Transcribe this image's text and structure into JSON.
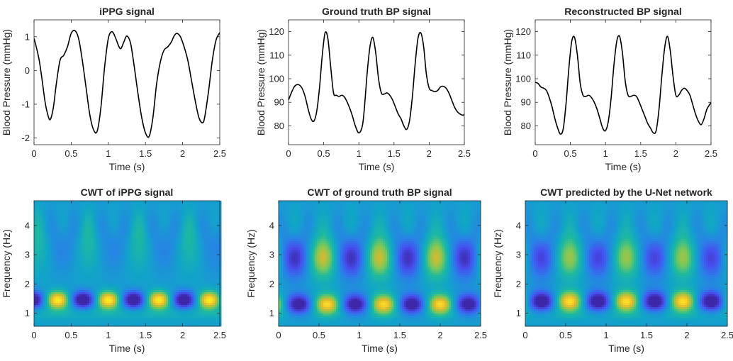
{
  "chart_data": [
    {
      "type": "line",
      "title": "iPPG signal",
      "xlabel": "Time (s)",
      "ylabel": "Blood Pressure (mmHg)",
      "xlim": [
        0,
        2.5
      ],
      "ylim": [
        -2.2,
        1.5
      ],
      "xticks": [
        0,
        0.5,
        1,
        1.5,
        2,
        2.5
      ],
      "xtick_labels": [
        "0",
        "0.5",
        "1",
        "1.5",
        "2",
        "2.5"
      ],
      "yticks": [
        -2,
        -1,
        0,
        1
      ],
      "ytick_labels": [
        "-2",
        "-1",
        "0",
        "1"
      ],
      "grid": false,
      "series": [
        {
          "color": "#000000",
          "x": [
            0,
            0.03,
            0.07,
            0.11,
            0.15,
            0.19,
            0.22,
            0.26,
            0.3,
            0.35,
            0.4,
            0.45,
            0.5,
            0.55,
            0.6,
            0.65,
            0.7,
            0.75,
            0.8,
            0.85,
            0.9,
            0.95,
            1.0,
            1.05,
            1.1,
            1.14,
            1.17,
            1.21,
            1.25,
            1.3,
            1.35,
            1.4,
            1.45,
            1.5,
            1.55,
            1.6,
            1.65,
            1.7,
            1.75,
            1.8,
            1.85,
            1.88,
            1.92,
            1.97,
            2.02,
            2.07,
            2.12,
            2.17,
            2.22,
            2.27,
            2.3,
            2.35,
            2.4,
            2.45,
            2.5
          ],
          "y": [
            0.95,
            0.7,
            0.3,
            -0.3,
            -0.95,
            -1.35,
            -1.45,
            -1.1,
            -0.4,
            0.3,
            0.45,
            0.7,
            1.1,
            1.18,
            0.95,
            0.3,
            -0.5,
            -1.3,
            -1.75,
            -1.8,
            -1.1,
            0.1,
            0.95,
            1.15,
            0.95,
            0.72,
            0.65,
            0.85,
            1.02,
            0.8,
            0.1,
            -0.7,
            -1.4,
            -1.85,
            -1.95,
            -1.4,
            -0.4,
            0.25,
            0.6,
            0.7,
            0.85,
            1.0,
            1.1,
            1.0,
            0.7,
            0.3,
            -0.3,
            -0.9,
            -1.4,
            -1.55,
            -1.35,
            -0.6,
            0.3,
            0.9,
            1.12
          ]
        }
      ]
    },
    {
      "type": "line",
      "title": "Ground truth BP signal",
      "xlabel": "Time (s)",
      "ylabel": "Blood Pressure (mmHg)",
      "xlim": [
        0,
        2.5
      ],
      "ylim": [
        72,
        125
      ],
      "xticks": [
        0,
        0.5,
        1,
        1.5,
        2,
        2.5
      ],
      "xtick_labels": [
        "0",
        "0.5",
        "1",
        "1.5",
        "2",
        "2.5"
      ],
      "yticks": [
        80,
        90,
        100,
        110,
        120
      ],
      "ytick_labels": [
        "80",
        "90",
        "100",
        "110",
        "120"
      ],
      "grid": false,
      "series": [
        {
          "color": "#000000",
          "x": [
            0,
            0.04,
            0.08,
            0.12,
            0.16,
            0.2,
            0.24,
            0.28,
            0.32,
            0.36,
            0.4,
            0.44,
            0.48,
            0.52,
            0.56,
            0.6,
            0.64,
            0.68,
            0.72,
            0.76,
            0.8,
            0.85,
            0.9,
            0.95,
            1.0,
            1.05,
            1.08,
            1.12,
            1.16,
            1.2,
            1.24,
            1.28,
            1.32,
            1.36,
            1.4,
            1.44,
            1.48,
            1.52,
            1.56,
            1.6,
            1.64,
            1.68,
            1.72,
            1.76,
            1.8,
            1.84,
            1.88,
            1.92,
            1.96,
            2.0,
            2.04,
            2.08,
            2.12,
            2.16,
            2.2,
            2.24,
            2.28,
            2.32,
            2.36,
            2.4,
            2.44,
            2.48,
            2.5
          ],
          "y": [
            91,
            94,
            96.5,
            97.5,
            97.2,
            95.5,
            92,
            87,
            83,
            82,
            86,
            96,
            110,
            119.5,
            117,
            105,
            94,
            93,
            92.5,
            93,
            92,
            89,
            85,
            80,
            77,
            80,
            88,
            103,
            114,
            117.5,
            111,
            100,
            94,
            93.5,
            94,
            93,
            91,
            88,
            85,
            83,
            80,
            78.5,
            82,
            92,
            106,
            117,
            119.5,
            114,
            102,
            96,
            95,
            94.5,
            95,
            96.5,
            96.8,
            96,
            94,
            91,
            88,
            86,
            85,
            84.5,
            85
          ]
        }
      ]
    },
    {
      "type": "line",
      "title": "Reconstructed BP signal",
      "xlabel": "Time (s)",
      "ylabel": "Blood Pressure (mmHg)",
      "xlim": [
        0,
        2.5
      ],
      "ylim": [
        72,
        125
      ],
      "xticks": [
        0,
        0.5,
        1,
        1.5,
        2,
        2.5
      ],
      "xtick_labels": [
        "0",
        "0.5",
        "1",
        "1.5",
        "2",
        "2.5"
      ],
      "yticks": [
        80,
        90,
        100,
        110,
        120
      ],
      "ytick_labels": [
        "80",
        "90",
        "100",
        "110",
        "120"
      ],
      "grid": false,
      "series": [
        {
          "color": "#000000",
          "x": [
            0,
            0.04,
            0.08,
            0.12,
            0.16,
            0.2,
            0.24,
            0.28,
            0.32,
            0.36,
            0.4,
            0.44,
            0.48,
            0.52,
            0.56,
            0.6,
            0.64,
            0.68,
            0.72,
            0.76,
            0.8,
            0.84,
            0.88,
            0.92,
            0.96,
            1.0,
            1.04,
            1.08,
            1.12,
            1.16,
            1.2,
            1.24,
            1.28,
            1.32,
            1.36,
            1.4,
            1.44,
            1.48,
            1.52,
            1.56,
            1.6,
            1.64,
            1.68,
            1.72,
            1.76,
            1.8,
            1.84,
            1.88,
            1.92,
            1.96,
            2.0,
            2.04,
            2.08,
            2.12,
            2.16,
            2.2,
            2.24,
            2.28,
            2.32,
            2.36,
            2.4,
            2.44,
            2.48,
            2.5
          ],
          "y": [
            98.5,
            98,
            96.5,
            96,
            95,
            92,
            88,
            83,
            79,
            76.5,
            79,
            90,
            105,
            116,
            117.5,
            110,
            98,
            93,
            92.5,
            93,
            92,
            90,
            87,
            83,
            79,
            78,
            82,
            92,
            106,
            116,
            118,
            111,
            99,
            93,
            92.5,
            93,
            92.5,
            90,
            87,
            84,
            81,
            79,
            77,
            78,
            87,
            101,
            113,
            118,
            112,
            101,
            93,
            93,
            95,
            96,
            95,
            93,
            89,
            85,
            82,
            80.5,
            83,
            87,
            89,
            90
          ]
        }
      ]
    },
    {
      "type": "heatmap",
      "title": "CWT of iPPG signal",
      "xlabel": "Time (s)",
      "ylabel": "Frequency (Hz)",
      "xlim": [
        0,
        2.5
      ],
      "ylim": [
        0.55,
        4.85
      ],
      "xticks": [
        0,
        0.5,
        1,
        1.5,
        2,
        2.5
      ],
      "xtick_labels": [
        "0",
        "0.5",
        "1",
        "1.5",
        "2",
        "2.5"
      ],
      "yticks": [
        1,
        2,
        3,
        4
      ],
      "ytick_labels": [
        "1",
        "2",
        "3",
        "4"
      ],
      "colormap": "parula",
      "base_level": 0.42,
      "low_band": {
        "freq": 1.45,
        "width": 0.3,
        "period_s": 0.68,
        "phase_s": 0.32,
        "amplitude": 0.55
      },
      "high_band": {
        "freq": 3.3,
        "width": 0.9,
        "period_s": 0.68,
        "phase_s": 0.05,
        "amplitude": 0.12
      },
      "floor_band": {
        "freq": 1.0,
        "width": 0.25,
        "level": 0.5
      }
    },
    {
      "type": "heatmap",
      "title": "CWT of ground truth BP signal",
      "xlabel": "Time (s)",
      "ylabel": "Frequency (Hz)",
      "xlim": [
        0,
        2.5
      ],
      "ylim": [
        0.55,
        4.85
      ],
      "xticks": [
        0,
        0.5,
        1,
        1.5,
        2,
        2.5
      ],
      "xtick_labels": [
        "0",
        "0.5",
        "1",
        "1.5",
        "2",
        "2.5"
      ],
      "yticks": [
        1,
        2,
        3,
        4
      ],
      "ytick_labels": [
        "1",
        "2",
        "3",
        "4"
      ],
      "colormap": "parula",
      "base_level": 0.42,
      "low_band": {
        "freq": 1.3,
        "width": 0.35,
        "period_s": 0.7,
        "phase_s": 0.6,
        "amplitude": 0.5
      },
      "high_band": {
        "freq": 2.9,
        "width": 0.7,
        "period_s": 0.7,
        "phase_s": 0.55,
        "amplitude": 0.38
      },
      "floor_band": {
        "freq": 0.95,
        "width": 0.2,
        "level": 0.45
      }
    },
    {
      "type": "heatmap",
      "title": "CWT predicted by the U-Net network",
      "xlabel": "Time (s)",
      "ylabel": "Frequency (Hz)",
      "xlim": [
        0,
        2.5
      ],
      "ylim": [
        0.55,
        4.85
      ],
      "xticks": [
        0,
        0.5,
        1,
        1.5,
        2,
        2.5
      ],
      "xtick_labels": [
        "0",
        "0.5",
        "1",
        "1.5",
        "2",
        "2.5"
      ],
      "yticks": [
        1,
        2,
        3,
        4
      ],
      "ytick_labels": [
        "1",
        "2",
        "3",
        "4"
      ],
      "colormap": "parula",
      "base_level": 0.42,
      "low_band": {
        "freq": 1.4,
        "width": 0.35,
        "period_s": 0.7,
        "phase_s": 0.55,
        "amplitude": 0.52
      },
      "high_band": {
        "freq": 2.9,
        "width": 0.7,
        "period_s": 0.7,
        "phase_s": 0.55,
        "amplitude": 0.32
      },
      "floor_band": {
        "freq": 0.95,
        "width": 0.2,
        "level": 0.48
      }
    }
  ]
}
